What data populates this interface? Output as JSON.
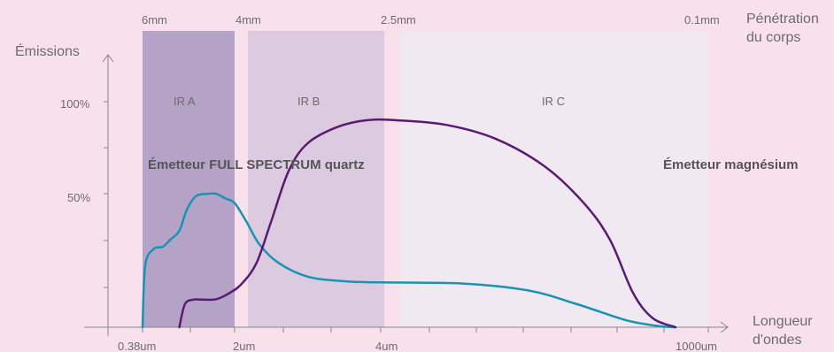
{
  "chart_data": {
    "type": "line",
    "ylabel": "Émissions",
    "xlabel_lines": [
      "Longueur",
      "d'ondes"
    ],
    "penetration_label_lines": [
      "Pénétration",
      "du corps"
    ],
    "y_ticks": [
      {
        "label": "100%",
        "value": 100
      },
      {
        "label": "50%",
        "value": 50
      }
    ],
    "x_ticks": [
      {
        "label": "0.38um"
      },
      {
        "label": "2um"
      },
      {
        "label": "4um"
      },
      {
        "label": "1000um"
      }
    ],
    "penetration_ticks": [
      {
        "label": "6mm"
      },
      {
        "label": "4mm"
      },
      {
        "label": "2.5mm"
      },
      {
        "label": "0.1mm"
      }
    ],
    "bands": [
      {
        "label": "IR A",
        "color": "#b5a3c7"
      },
      {
        "label": "IR B",
        "color": "#dccbe0"
      },
      {
        "label": "IR C",
        "color": "#f1e9f1"
      }
    ],
    "series": [
      {
        "name": "Émetteur FULL SPECTRUM quartz",
        "color": "#1a93b3",
        "points": [
          [
            0.0,
            0
          ],
          [
            0.03,
            27
          ],
          [
            0.12,
            34
          ],
          [
            0.22,
            35
          ],
          [
            0.3,
            38
          ],
          [
            0.4,
            42
          ],
          [
            0.48,
            51
          ],
          [
            0.58,
            57
          ],
          [
            0.7,
            58
          ],
          [
            0.8,
            58
          ],
          [
            0.9,
            56
          ],
          [
            1.0,
            54
          ],
          [
            1.08,
            46
          ],
          [
            1.17,
            36
          ],
          [
            1.3,
            28
          ],
          [
            1.5,
            22
          ],
          [
            1.75,
            20
          ],
          [
            2.0,
            19.5
          ],
          [
            2.25,
            19
          ],
          [
            2.45,
            16
          ],
          [
            2.6,
            10
          ],
          [
            2.75,
            3
          ],
          [
            2.85,
            0.5
          ],
          [
            2.9,
            0
          ]
        ]
      },
      {
        "name": "Émetteur magnésium",
        "color": "#5b1a72",
        "points": [
          [
            0.4,
            0
          ],
          [
            0.46,
            10
          ],
          [
            0.55,
            12
          ],
          [
            0.65,
            12
          ],
          [
            0.8,
            12.2
          ],
          [
            0.95,
            15
          ],
          [
            1.05,
            19
          ],
          [
            1.15,
            28
          ],
          [
            1.25,
            46
          ],
          [
            1.37,
            68
          ],
          [
            1.5,
            80
          ],
          [
            1.7,
            87
          ],
          [
            1.9,
            90
          ],
          [
            2.05,
            90
          ],
          [
            2.2,
            88
          ],
          [
            2.35,
            82
          ],
          [
            2.5,
            70
          ],
          [
            2.62,
            54
          ],
          [
            2.7,
            38
          ],
          [
            2.77,
            15
          ],
          [
            2.83,
            4
          ],
          [
            2.9,
            0
          ]
        ]
      }
    ]
  }
}
